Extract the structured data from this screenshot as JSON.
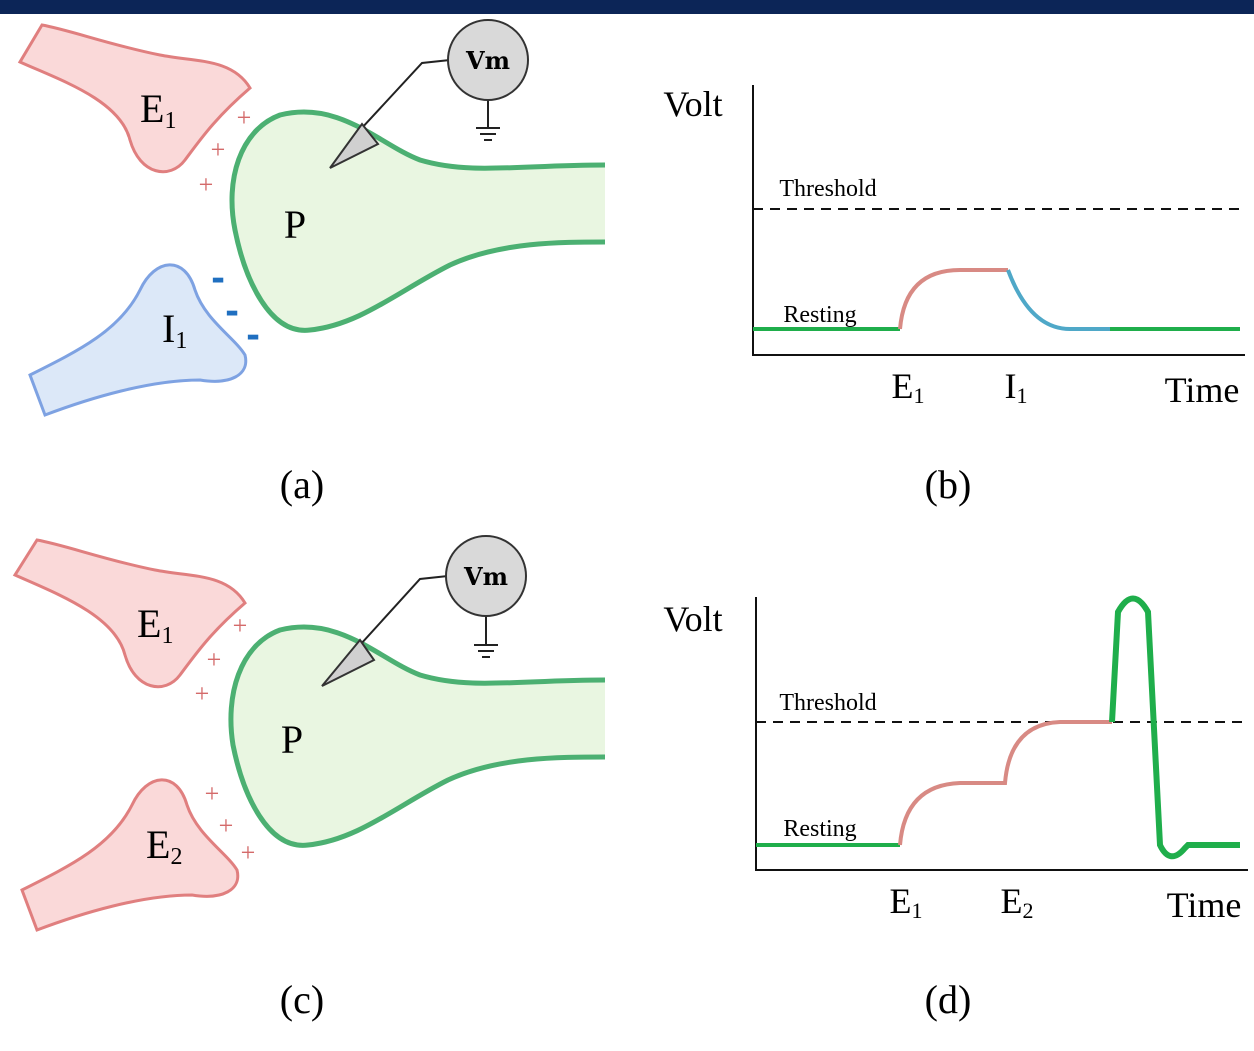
{
  "panel_a": {
    "caption": "(a)",
    "postsynaptic": "P",
    "meter": "Vm",
    "presynaptic": [
      {
        "label": "E",
        "sub": "1",
        "charges": [
          "+",
          "+",
          "+"
        ]
      },
      {
        "label": "I",
        "sub": "1",
        "charges": [
          "-",
          "-",
          "-"
        ]
      }
    ]
  },
  "panel_b": {
    "caption": "(b)",
    "y_label": "Volt",
    "x_label": "Time",
    "threshold": "Threshold",
    "resting": "Resting",
    "events": [
      {
        "label": "E",
        "sub": "1"
      },
      {
        "label": "I",
        "sub": "1"
      }
    ]
  },
  "panel_c": {
    "caption": "(c)",
    "postsynaptic": "P",
    "meter": "Vm",
    "presynaptic": [
      {
        "label": "E",
        "sub": "1",
        "charges": [
          "+",
          "+",
          "+"
        ]
      },
      {
        "label": "E",
        "sub": "2",
        "charges": [
          "+",
          "+",
          "+"
        ]
      }
    ]
  },
  "panel_d": {
    "caption": "(d)",
    "y_label": "Volt",
    "x_label": "Time",
    "threshold": "Threshold",
    "resting": "Resting",
    "events": [
      {
        "label": "E",
        "sub": "1"
      },
      {
        "label": "E",
        "sub": "2"
      }
    ]
  }
}
